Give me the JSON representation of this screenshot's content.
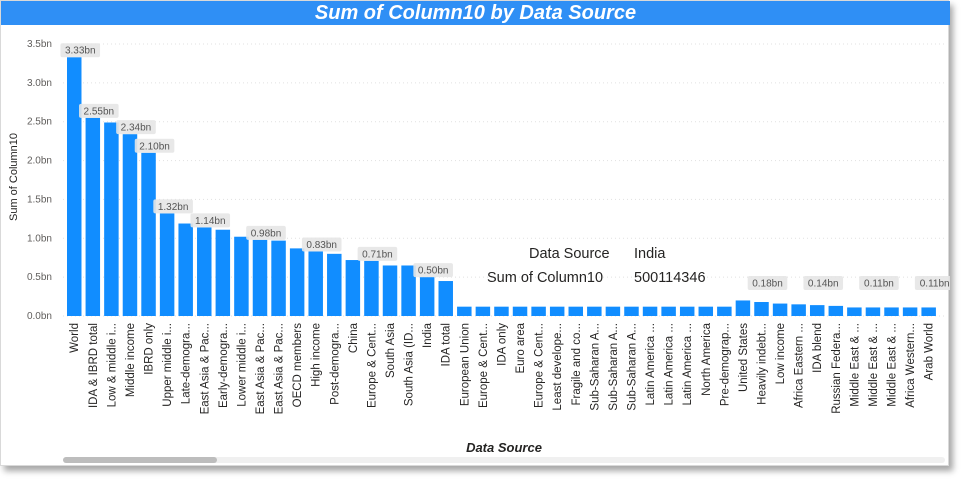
{
  "chart_data": {
    "type": "bar",
    "title": "Sum of Column10 by Data Source",
    "xlabel": "Data Source",
    "ylabel": "Sum of Column10",
    "ylim": [
      0,
      3.5
    ],
    "yticks": [
      "0.0bn",
      "0.5bn",
      "1.0bn",
      "1.5bn",
      "2.0bn",
      "2.5bn",
      "3.0bn",
      "3.5bn"
    ],
    "grid": true,
    "bar_color": "#118dff",
    "title_bar_color": "#2f8ff5",
    "categories": [
      "World",
      "IDA & IBRD total",
      "Low & middle i...",
      "Middle income",
      "IBRD only",
      "Upper middle i...",
      "Late-demogra...",
      "East Asia & Pac...",
      "Early-demogra...",
      "Lower middle i...",
      "East Asia & Pac...",
      "East Asia & Pac...",
      "OECD members",
      "High income",
      "Post-demogra...",
      "China",
      "Europe & Cent...",
      "South Asia",
      "South Asia (ID...",
      "India",
      "IDA total",
      "European Union",
      "Europe & Cent...",
      "IDA only",
      "Euro area",
      "Europe & Cent...",
      "Least develope...",
      "Fragile and co...",
      "Sub-Saharan A...",
      "Sub-Saharan A...",
      "Sub-Saharan A...",
      "Latin America ...",
      "Latin America ...",
      "Latin America ...",
      "North America",
      "Pre-demograp...",
      "United States",
      "Heavily indebt...",
      "Low income",
      "Africa Eastern ...",
      "IDA blend",
      "Russian Federa...",
      "Middle East & ...",
      "Middle East & ...",
      "Middle East & ...",
      "Africa Western...",
      "Arab World"
    ],
    "values": [
      3.33,
      2.55,
      2.49,
      2.34,
      2.1,
      1.32,
      1.19,
      1.14,
      1.11,
      1.02,
      0.98,
      0.97,
      0.87,
      0.83,
      0.8,
      0.72,
      0.71,
      0.65,
      0.65,
      0.5,
      0.45,
      0.12,
      0.12,
      0.12,
      0.12,
      0.12,
      0.12,
      0.12,
      0.12,
      0.12,
      0.12,
      0.12,
      0.12,
      0.12,
      0.12,
      0.12,
      0.2,
      0.18,
      0.16,
      0.15,
      0.14,
      0.13,
      0.11,
      0.11,
      0.11,
      0.11,
      0.11
    ],
    "data_labels": {
      "0": "3.33bn",
      "1": "2.55bn",
      "3": "2.34bn",
      "4": "2.10bn",
      "5": "1.32bn",
      "7": "1.14bn",
      "10": "0.98bn",
      "13": "0.83bn",
      "16": "0.71bn",
      "19": "0.50bn",
      "37": "0.18bn",
      "40": "0.14bn",
      "43": "0.11bn",
      "46": "0.11bn"
    }
  },
  "tooltip": {
    "row1_label": "Data Source",
    "row1_value": "India",
    "row2_label": "Sum of Column10",
    "row2_value": "500114346"
  }
}
